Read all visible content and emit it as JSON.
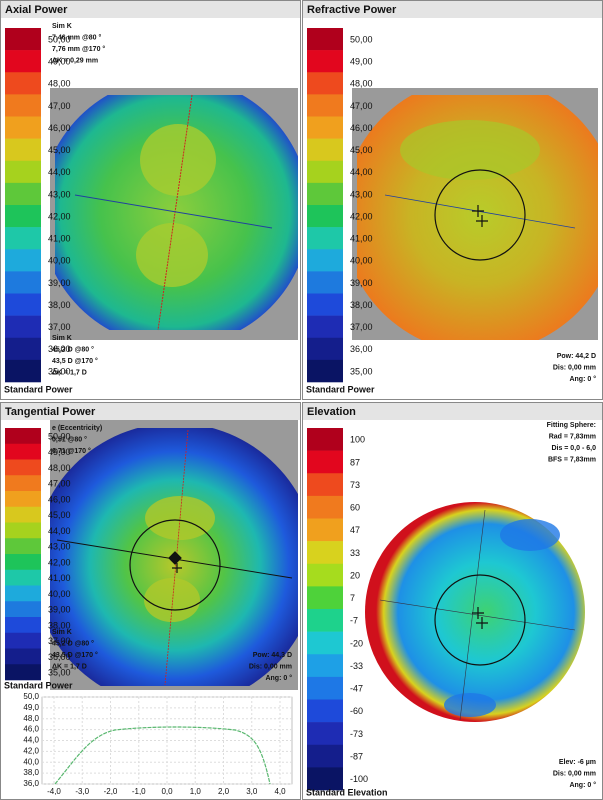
{
  "panels": [
    {
      "title": "Axial Power",
      "scale": [
        {
          "label": "50,00",
          "color": "#b0001c"
        },
        {
          "label": "49,00",
          "color": "#e2061e"
        },
        {
          "label": "48,00",
          "color": "#ee4a1e"
        },
        {
          "label": "47,00",
          "color": "#f07a1e"
        },
        {
          "label": "46,00",
          "color": "#f0a01e"
        },
        {
          "label": "45,00",
          "color": "#d8c81e"
        },
        {
          "label": "44,00",
          "color": "#a6d21e"
        },
        {
          "label": "43,00",
          "color": "#5ec83a"
        },
        {
          "label": "42,00",
          "color": "#1ec45a"
        },
        {
          "label": "41,00",
          "color": "#1ec8a8"
        },
        {
          "label": "40,00",
          "color": "#1eaadc"
        },
        {
          "label": "39,00",
          "color": "#1e7ade"
        },
        {
          "label": "38,00",
          "color": "#1e4ada"
        },
        {
          "label": "37,00",
          "color": "#1e2cb4"
        },
        {
          "label": "36,00",
          "color": "#141e8c"
        },
        {
          "label": "35,00",
          "color": "#0a1464"
        }
      ],
      "info_top": [
        "Sim K",
        "7,46 mm @80 °",
        "7,76 mm @170 °",
        "ΔK = 0,29 mm"
      ],
      "info_bottom": [
        "Sim K",
        "45,2 D @80 °",
        "43,5 D @170 °",
        "ΔK = 1,7 D"
      ],
      "footer": "Standard Power"
    },
    {
      "title": "Refractive Power",
      "scale": [
        {
          "label": "50,00",
          "color": "#b0001c"
        },
        {
          "label": "49,00",
          "color": "#e2061e"
        },
        {
          "label": "48,00",
          "color": "#ee4a1e"
        },
        {
          "label": "47,00",
          "color": "#f07a1e"
        },
        {
          "label": "46,00",
          "color": "#f0a01e"
        },
        {
          "label": "45,00",
          "color": "#d8c81e"
        },
        {
          "label": "44,00",
          "color": "#a6d21e"
        },
        {
          "label": "43,00",
          "color": "#5ec83a"
        },
        {
          "label": "42,00",
          "color": "#1ec45a"
        },
        {
          "label": "41,00",
          "color": "#1ec8a8"
        },
        {
          "label": "40,00",
          "color": "#1eaadc"
        },
        {
          "label": "39,00",
          "color": "#1e7ade"
        },
        {
          "label": "38,00",
          "color": "#1e4ada"
        },
        {
          "label": "37,00",
          "color": "#1e2cb4"
        },
        {
          "label": "36,00",
          "color": "#141e8c"
        },
        {
          "label": "35,00",
          "color": "#0a1464"
        }
      ],
      "info_right": [
        "Pow: 44,2 D",
        "Dis: 0,00 mm",
        "Ang: 0 °"
      ],
      "footer": "Standard Power"
    },
    {
      "title": "Tangential Power",
      "scale": [
        {
          "label": "50,00",
          "color": "#b0001c"
        },
        {
          "label": "49,00",
          "color": "#e2061e"
        },
        {
          "label": "48,00",
          "color": "#ee4a1e"
        },
        {
          "label": "47,00",
          "color": "#f07a1e"
        },
        {
          "label": "46,00",
          "color": "#f0a01e"
        },
        {
          "label": "45,00",
          "color": "#d8c81e"
        },
        {
          "label": "44,00",
          "color": "#a6d21e"
        },
        {
          "label": "43,00",
          "color": "#5ec83a"
        },
        {
          "label": "42,00",
          "color": "#1ec45a"
        },
        {
          "label": "41,00",
          "color": "#1ec8a8"
        },
        {
          "label": "40,00",
          "color": "#1eaadc"
        },
        {
          "label": "39,00",
          "color": "#1e7ade"
        },
        {
          "label": "38,00",
          "color": "#1e4ada"
        },
        {
          "label": "37,00",
          "color": "#1e2cb4"
        },
        {
          "label": "36,00",
          "color": "#141e8c"
        },
        {
          "label": "35,00",
          "color": "#0a1464"
        }
      ],
      "info_top": [
        "e (Eccentricity)",
        "0,51 @80 °",
        "0,71 @170 °"
      ],
      "info_bottom": [
        "Sim K",
        "45,2 D @80 °",
        "43,5 D @170 °",
        "ΔK = 1,7 D"
      ],
      "info_right": [
        "Pow: 44,3 D",
        "Dis: 0,00 mm",
        "Ang: 0 °"
      ],
      "footer": "Standard Power",
      "profile": {
        "yticks": [
          "50,0",
          "49,0",
          "48,0",
          "46,0",
          "44,0",
          "42,0",
          "40,0",
          "38,0",
          "36,0"
        ],
        "xticks": [
          "-4,0",
          "-3,0",
          "-2,0",
          "-1,0",
          "0,0",
          "1,0",
          "2,0",
          "3,0",
          "4,0"
        ]
      }
    },
    {
      "title": "Elevation",
      "scale": [
        {
          "label": "100",
          "color": "#b0001c"
        },
        {
          "label": "87",
          "color": "#e2061e"
        },
        {
          "label": "73",
          "color": "#ee4a1e"
        },
        {
          "label": "60",
          "color": "#f07a1e"
        },
        {
          "label": "47",
          "color": "#f0a01e"
        },
        {
          "label": "33",
          "color": "#d8d21e"
        },
        {
          "label": "20",
          "color": "#a6dc1e"
        },
        {
          "label": "7",
          "color": "#4ed23a"
        },
        {
          "label": "-7",
          "color": "#1ed28c"
        },
        {
          "label": "-20",
          "color": "#1ec8d2"
        },
        {
          "label": "-33",
          "color": "#1ea0e6"
        },
        {
          "label": "-47",
          "color": "#1e78e6"
        },
        {
          "label": "-60",
          "color": "#1e4ada"
        },
        {
          "label": "-73",
          "color": "#1e2cb4"
        },
        {
          "label": "-87",
          "color": "#141e8c"
        },
        {
          "label": "-100",
          "color": "#0a1464"
        }
      ],
      "info_top": [
        "Fitting Sphere:",
        "Rad = 7,83mm",
        "Dis = 0,0 - 6,0",
        "BFS = 7,83mm"
      ],
      "info_right": [
        "Elev: -6 µm",
        "Dis: 0,00 mm",
        "Ang: 0 °"
      ],
      "footer": "Standard Elevation"
    }
  ]
}
